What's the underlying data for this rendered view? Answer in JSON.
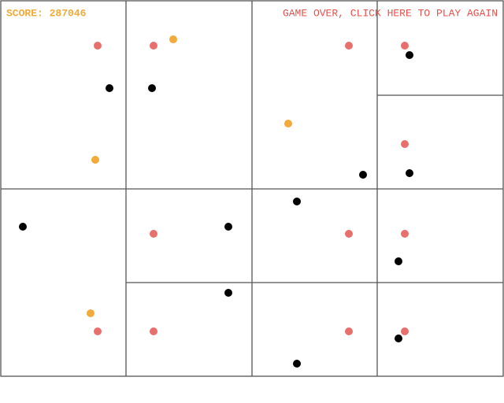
{
  "hud": {
    "score": "SCORE: 287046",
    "game_over": "GAME OVER, CLICK HERE TO PLAY AGAIN"
  }
}
